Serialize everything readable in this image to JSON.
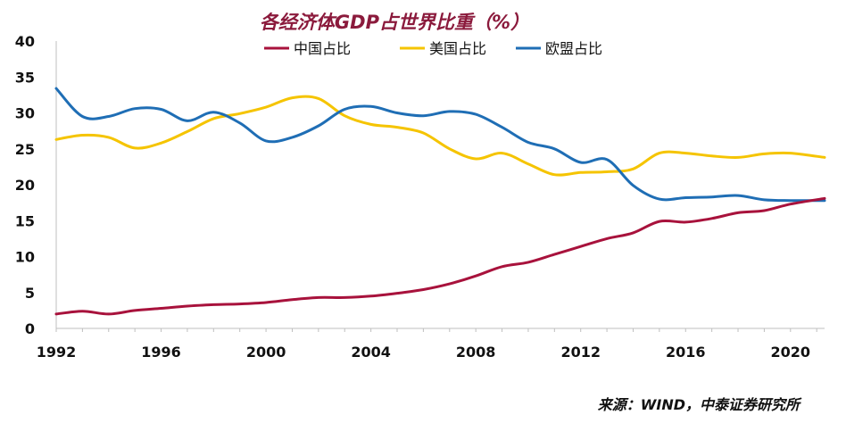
{
  "chart_data": {
    "type": "line",
    "title": "各经济体GDP占世界比重（%）",
    "title_color": "#8b1a3c",
    "xlabel": "",
    "ylabel": "",
    "xlim": [
      1992,
      2021.3
    ],
    "ylim": [
      0,
      40
    ],
    "yticks": [
      0,
      5,
      10,
      15,
      20,
      25,
      30,
      35,
      40
    ],
    "xticks": [
      1992,
      1996,
      2000,
      2004,
      2008,
      2012,
      2016,
      2020
    ],
    "grid": false,
    "legend_position": "top",
    "series": [
      {
        "name": "中国占比",
        "color": "#a8123c",
        "x": [
          1992,
          1993,
          1994,
          1995,
          1996,
          1997,
          1998,
          1999,
          2000,
          2001,
          2002,
          2003,
          2004,
          2005,
          2006,
          2007,
          2008,
          2009,
          2010,
          2011,
          2012,
          2013,
          2014,
          2015,
          2016,
          2017,
          2018,
          2019,
          2020,
          2021.3
        ],
        "y": [
          2.0,
          2.4,
          2.0,
          2.5,
          2.8,
          3.1,
          3.3,
          3.4,
          3.6,
          4.0,
          4.3,
          4.3,
          4.5,
          4.9,
          5.4,
          6.2,
          7.3,
          8.6,
          9.2,
          10.3,
          11.4,
          12.5,
          13.3,
          14.9,
          14.8,
          15.3,
          16.1,
          16.4,
          17.3,
          18.1
        ]
      },
      {
        "name": "美国占比",
        "color": "#f5c400",
        "x": [
          1992,
          1993,
          1994,
          1995,
          1996,
          1997,
          1998,
          1999,
          2000,
          2001,
          2002,
          2003,
          2004,
          2005,
          2006,
          2007,
          2008,
          2009,
          2010,
          2011,
          2012,
          2013,
          2014,
          2015,
          2016,
          2017,
          2018,
          2019,
          2020,
          2021.3
        ],
        "y": [
          26.3,
          26.9,
          26.6,
          25.1,
          25.8,
          27.4,
          29.2,
          29.9,
          30.8,
          32.1,
          32.0,
          29.6,
          28.4,
          28.0,
          27.2,
          25.0,
          23.6,
          24.4,
          22.9,
          21.4,
          21.7,
          21.8,
          22.2,
          24.4,
          24.4,
          24.0,
          23.8,
          24.3,
          24.4,
          23.8
        ]
      },
      {
        "name": "欧盟占比",
        "color": "#1f6eb5",
        "x": [
          1992,
          1993,
          1994,
          1995,
          1996,
          1997,
          1998,
          1999,
          2000,
          2001,
          2002,
          2003,
          2004,
          2005,
          2006,
          2007,
          2008,
          2009,
          2010,
          2011,
          2012,
          2013,
          2014,
          2015,
          2016,
          2017,
          2018,
          2019,
          2020,
          2021.3
        ],
        "y": [
          33.4,
          29.5,
          29.5,
          30.6,
          30.5,
          28.9,
          30.1,
          28.6,
          26.1,
          26.6,
          28.2,
          30.5,
          30.9,
          30.0,
          29.6,
          30.2,
          29.8,
          28.0,
          25.9,
          25.0,
          23.1,
          23.5,
          19.9,
          18.0,
          18.2,
          18.3,
          18.5,
          17.9,
          17.8,
          17.8
        ]
      }
    ]
  },
  "source_text": "来源：WIND，中泰证券研究所"
}
